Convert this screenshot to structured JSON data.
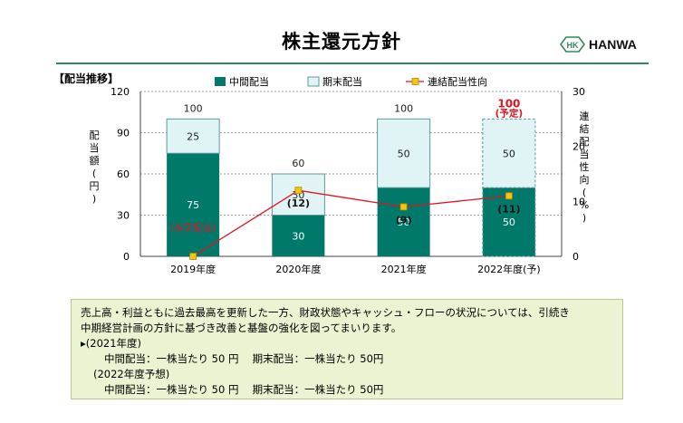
{
  "header": {
    "title": "株主還元方針",
    "logo_mark": "HK",
    "logo_text": "HANWA",
    "section_label": "【配当推移】"
  },
  "colors": {
    "interim": "#00796b",
    "yearend": "#e0f4f6",
    "bar_stroke": "#5b9aa0",
    "payout_line": "#e0141e",
    "payout_marker": "#f6c511",
    "forecast_label": "#e0141e",
    "grid": "#9e9e9e",
    "rule": "#2e8b57"
  },
  "chart_data": {
    "type": "bar",
    "categories": [
      "2019年度",
      "2020年度",
      "2021年度",
      "2022年度(予)"
    ],
    "series": [
      {
        "name": "中間配当",
        "values": [
          75,
          30,
          50,
          50
        ]
      },
      {
        "name": "期末配当",
        "values": [
          25,
          30,
          50,
          50
        ]
      },
      {
        "name": "連結配当性向",
        "values": [
          0,
          12,
          9,
          11
        ],
        "axis": "right"
      }
    ],
    "totals": [
      "100",
      "60",
      "100",
      "100"
    ],
    "forecast_note": "(予定)",
    "payout_labels": [
      "(赤字配当)",
      "(12)",
      "(9)",
      "(11)"
    ],
    "ylabel_left": "配当額(円)",
    "ylabel_right": "連結配当性向(%)",
    "ylim_left": [
      0,
      120
    ],
    "ylim_right": [
      0,
      30
    ],
    "yticks_left": [
      "0",
      "30",
      "60",
      "90",
      "120"
    ],
    "yticks_right": [
      "0",
      "10",
      "20",
      "30"
    ],
    "grid": true,
    "legend_position": "top"
  },
  "note": {
    "lines": [
      "売上高・利益ともに過去最高を更新した一方、財政状態やキャッシュ・フローの状況については、引続き",
      "中期経営計画の方針に基づき改善と基盤の強化を図ってまいります。",
      "▸(2021年度)",
      "中間配当：一株当たり 50 円　 期末配当：一株当たり 50円",
      "(2022年度予想)",
      "中間配当：一株当たり 50 円　 期末配当：一株当たり 50円"
    ]
  }
}
